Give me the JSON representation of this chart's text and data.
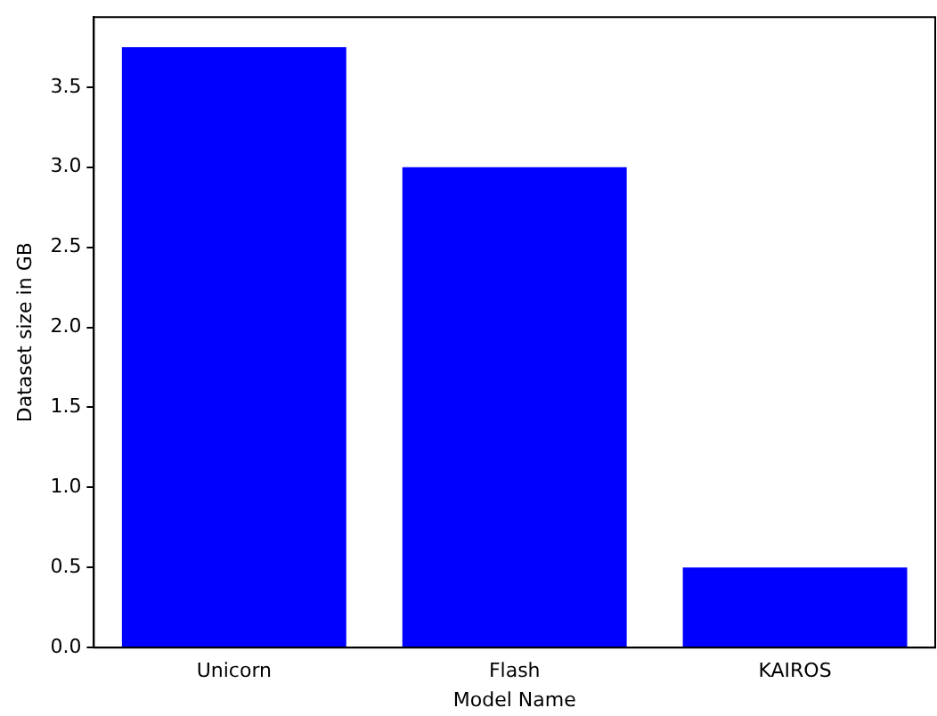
{
  "chart_data": {
    "type": "bar",
    "xlabel": "Model Name",
    "ylabel": "Dataset size in GB",
    "categories": [
      "Unicorn",
      "Flash",
      "KAIROS"
    ],
    "values": [
      3.75,
      3.0,
      0.5
    ],
    "color": "#0000ff",
    "ylim": [
      0,
      3.9375
    ],
    "yticks": [
      {
        "value": 0,
        "label": "0.0"
      },
      0.5,
      {
        "value": 1,
        "label": "1.0"
      },
      1.5,
      {
        "value": 2,
        "label": "2.0"
      },
      2.5,
      {
        "value": 3,
        "label": "3.0"
      },
      3.5
    ],
    "grid": false,
    "legend": false
  }
}
